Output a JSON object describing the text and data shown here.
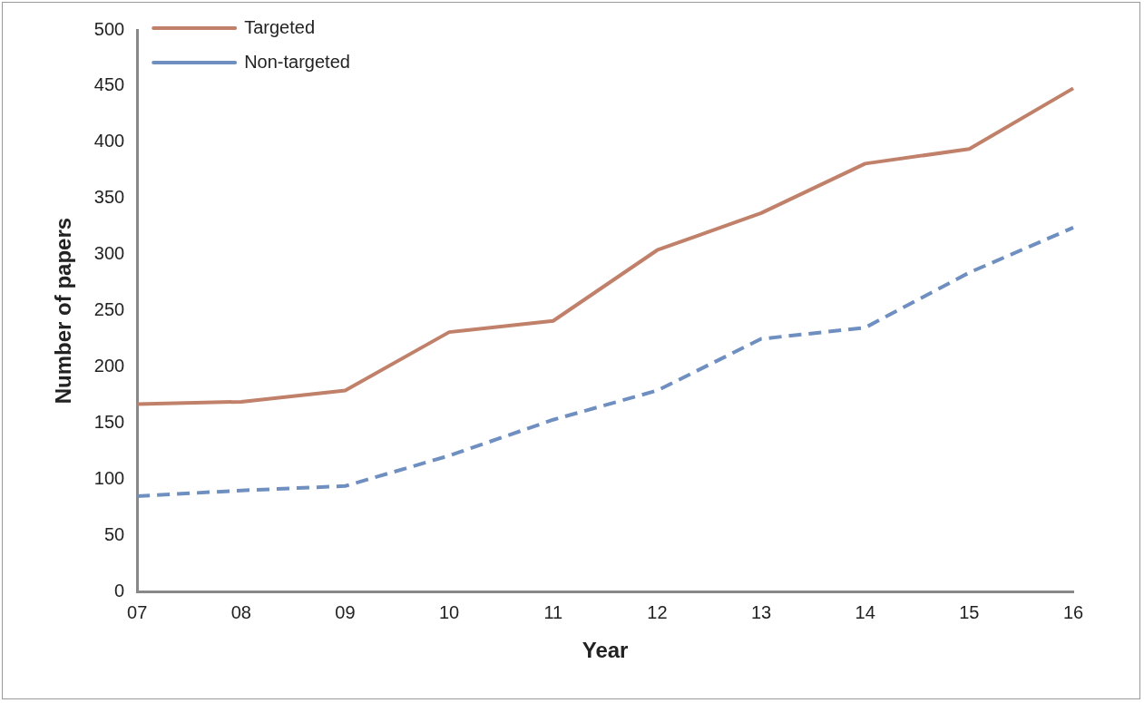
{
  "chart_data": {
    "type": "line",
    "xlabel": "Year",
    "ylabel": "Number of papers",
    "categories": [
      "07",
      "08",
      "09",
      "10",
      "11",
      "12",
      "13",
      "14",
      "15",
      "16"
    ],
    "series": [
      {
        "name": "Targeted",
        "color": "#c0806a",
        "line_style": "solid",
        "values": [
          167,
          169,
          179,
          231,
          241,
          304,
          337,
          381,
          394,
          448
        ]
      },
      {
        "name": "Non-targeted",
        "color": "#6f8fc0",
        "line_style": "dashed",
        "values": [
          85,
          90,
          94,
          121,
          153,
          179,
          225,
          235,
          284,
          324
        ]
      }
    ],
    "ylim": [
      0,
      500
    ],
    "yticks": [
      0,
      50,
      100,
      150,
      200,
      250,
      300,
      350,
      400,
      450,
      500
    ],
    "grid": false,
    "legend": "top left",
    "marker": "none"
  }
}
